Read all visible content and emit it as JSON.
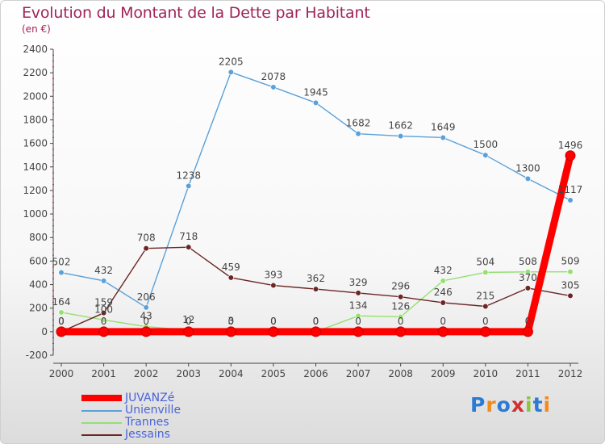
{
  "header": {
    "title": "Evolution du Montant de la Dette par Habitant",
    "subtitle": "(en €)"
  },
  "legend": {
    "items": [
      {
        "label": "JUVANZé",
        "color": "#ff0000"
      },
      {
        "label": "Unienville",
        "color": "#5ba0d8"
      },
      {
        "label": "Trannes",
        "color": "#94e070"
      },
      {
        "label": "Jessains",
        "color": "#6b2525"
      }
    ]
  },
  "logo": {
    "text": "Proxiti",
    "colors": [
      "#2b7bd6",
      "#f28a1c",
      "#2b7bd6",
      "#d12e2e",
      "#8cc63f",
      "#2b7bd6",
      "#f28a1c"
    ]
  },
  "chart_data": {
    "type": "line",
    "title": "Evolution du Montant de la Dette par Habitant",
    "subtitle": "(en €)",
    "xlabel": "",
    "ylabel": "",
    "x": [
      "2000",
      "2001",
      "2002",
      "2003",
      "2004",
      "2005",
      "2006",
      "2007",
      "2008",
      "2009",
      "2010",
      "2011",
      "2012"
    ],
    "ylim": [
      -200,
      2400
    ],
    "yticks": [
      -200,
      0,
      200,
      400,
      600,
      800,
      1000,
      1200,
      1400,
      1600,
      1800,
      2000,
      2200,
      2400
    ],
    "grid": false,
    "legend_position": "bottom-left",
    "series": [
      {
        "name": "Unienville",
        "color": "#5ba0d8",
        "values": [
          502,
          432,
          206,
          1238,
          2205,
          2078,
          1945,
          1682,
          1662,
          1649,
          1500,
          1300,
          1117
        ]
      },
      {
        "name": "Trannes",
        "color": "#94e070",
        "values": [
          164,
          100,
          43,
          12,
          3,
          0,
          0,
          134,
          126,
          432,
          504,
          508,
          509
        ]
      },
      {
        "name": "Jessains",
        "color": "#6b2525",
        "values": [
          0,
          159,
          708,
          718,
          459,
          393,
          362,
          329,
          296,
          246,
          215,
          370,
          305
        ]
      },
      {
        "name": "JUVANZé",
        "color": "#ff0000",
        "values": [
          0,
          0,
          0,
          0,
          0,
          0,
          0,
          0,
          0,
          0,
          0,
          0,
          1496
        ]
      }
    ]
  }
}
